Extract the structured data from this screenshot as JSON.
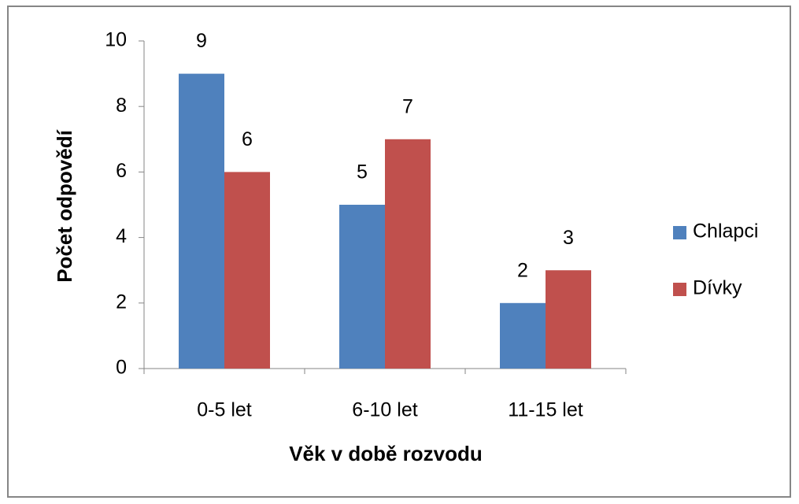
{
  "chart_data": {
    "type": "bar",
    "x_label": "Věk v době rozvodu",
    "y_label": "Počet odpovědí",
    "categories": [
      "0-5 let",
      "6-10 let",
      "11-15 let"
    ],
    "series": [
      {
        "name": "Chlapci",
        "color": "#4f81bd",
        "values": [
          9,
          5,
          2
        ]
      },
      {
        "name": "Dívky",
        "color": "#c0504d",
        "values": [
          6,
          7,
          3
        ]
      }
    ],
    "ylim": [
      0,
      10
    ],
    "yticks": [
      0,
      2,
      4,
      6,
      8,
      10
    ],
    "grid": false,
    "legend": "right"
  }
}
